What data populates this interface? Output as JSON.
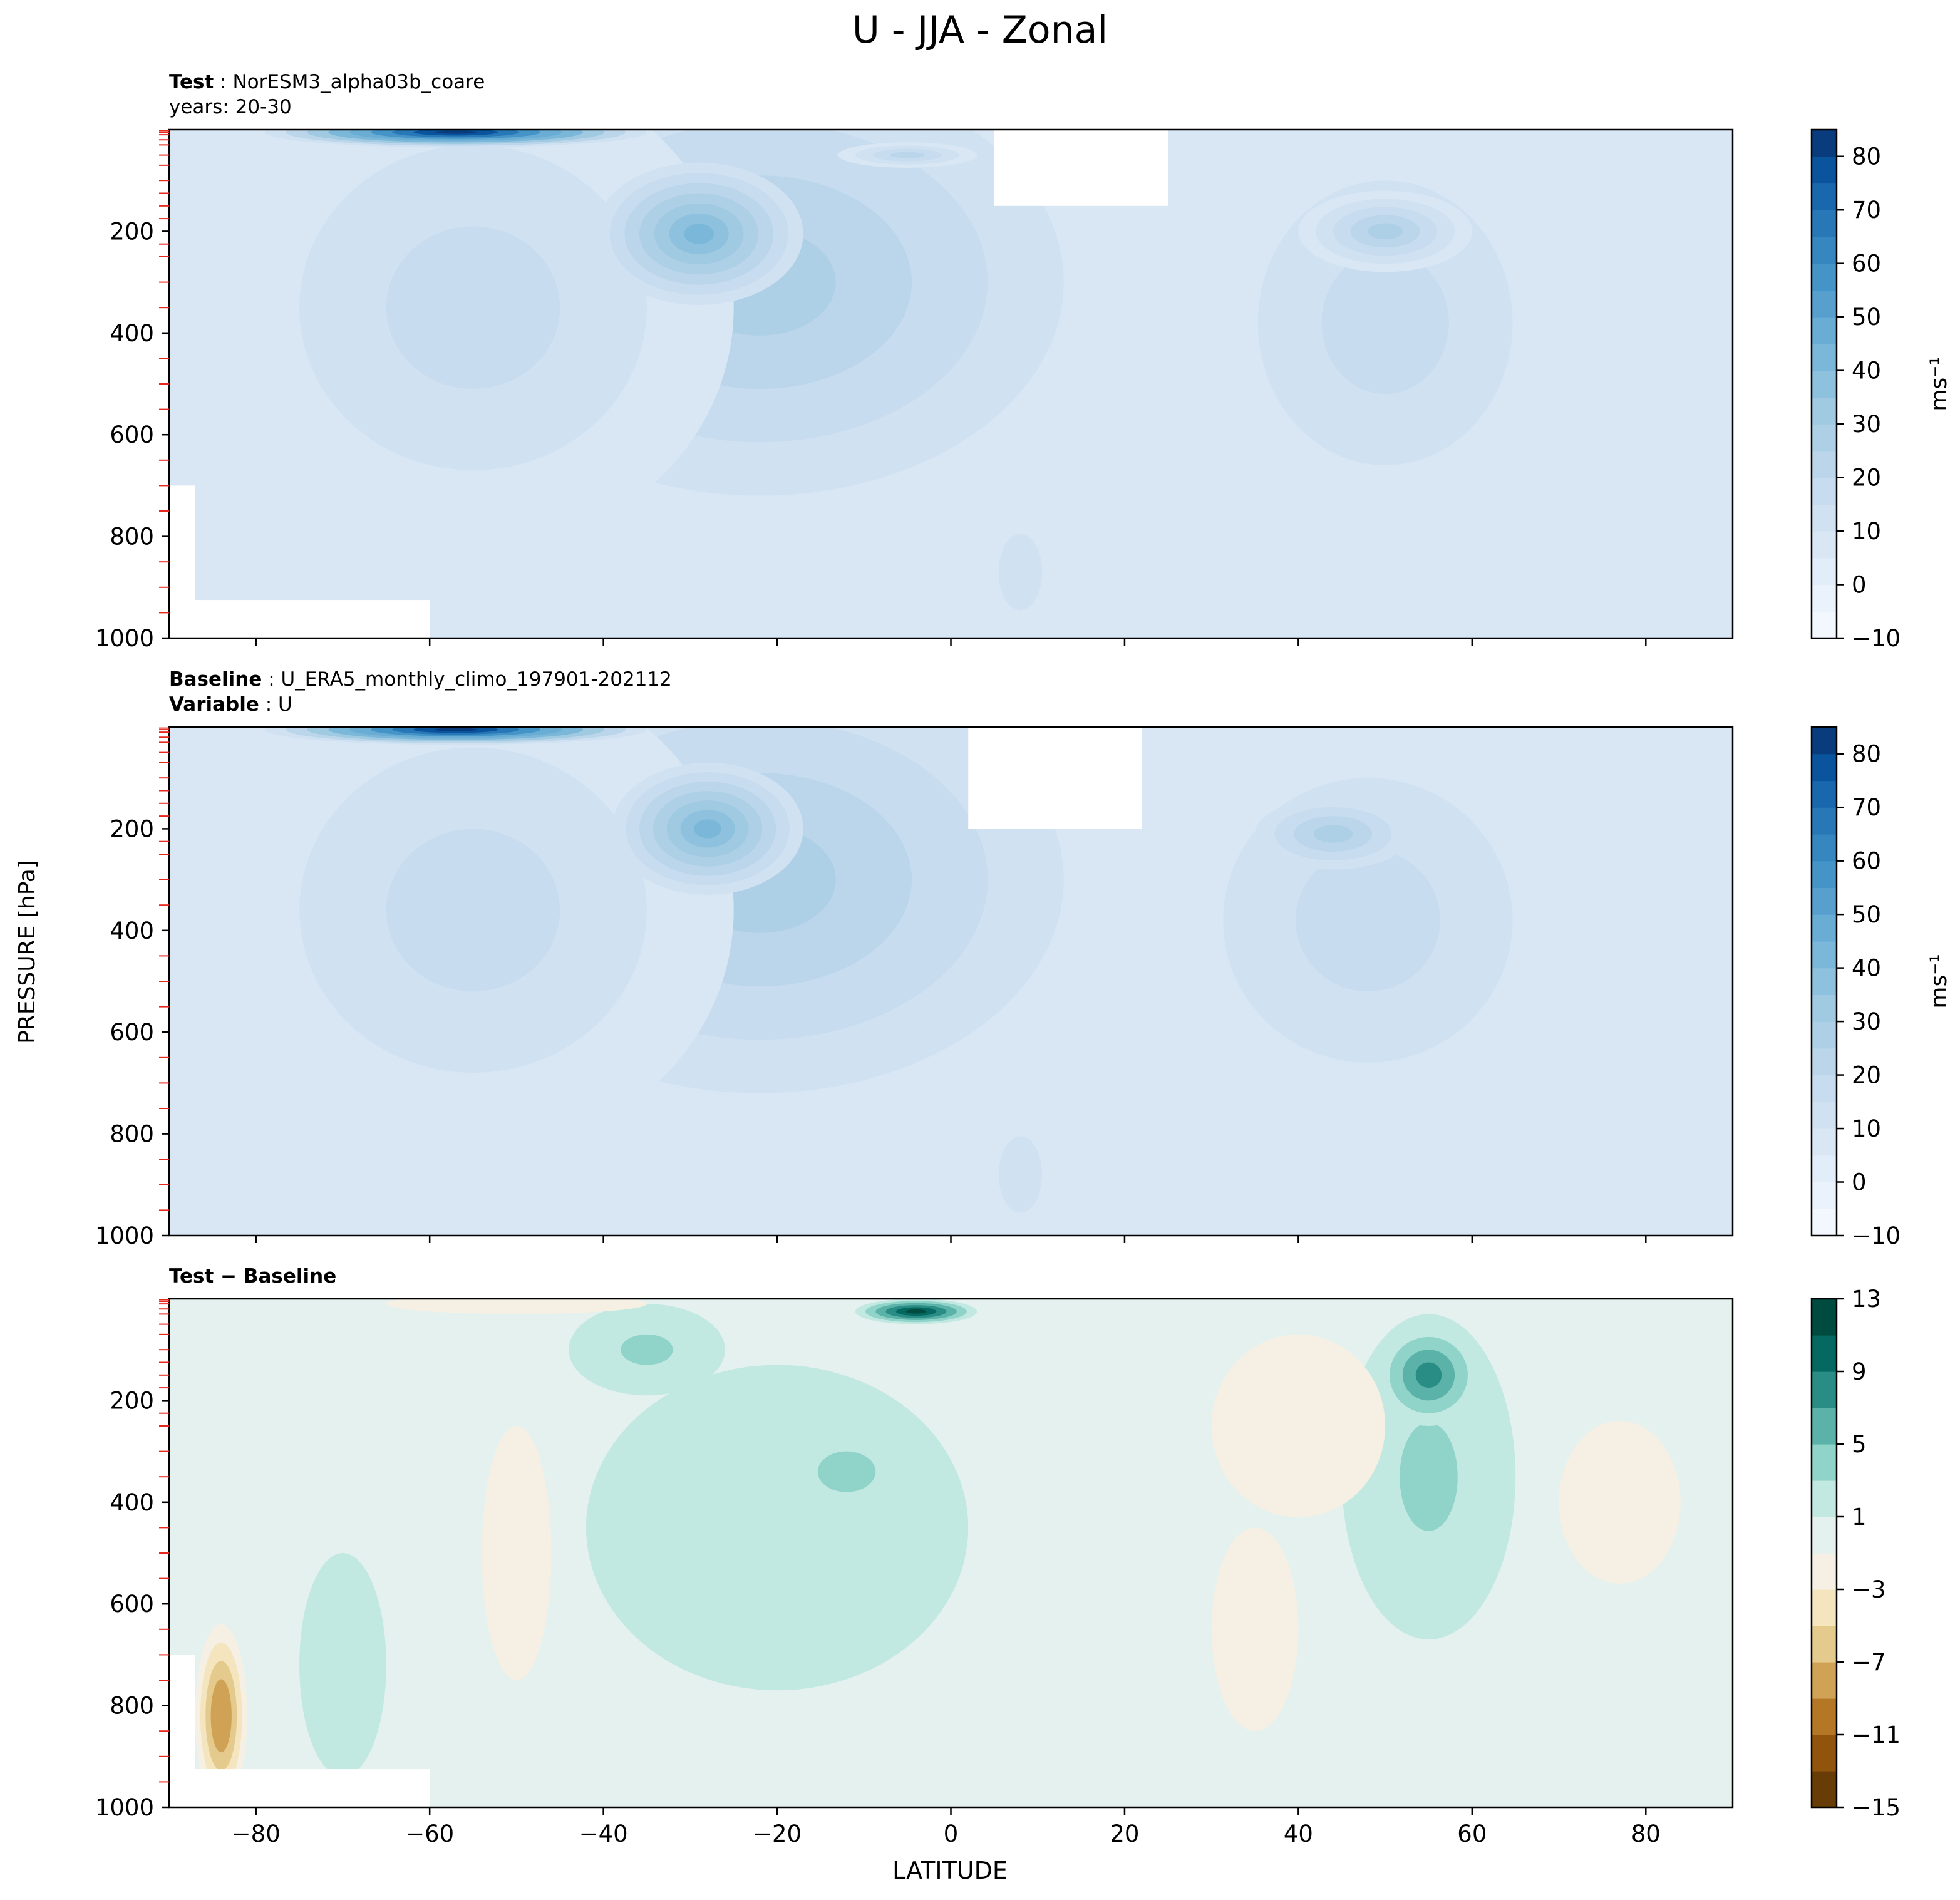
{
  "figure": {
    "title": "U - JJA - Zonal",
    "shared_ylabel": "PRESSURE [hPa]",
    "xlabel": "LATITUDE"
  },
  "panels": [
    {
      "id": "test",
      "header": [
        {
          "bold": "Test",
          "text": "NorESM3_alpha03b_coare"
        },
        {
          "bold": "",
          "text": "years: 20-30"
        }
      ],
      "colorbar_label": "ms⁻¹"
    },
    {
      "id": "baseline",
      "header": [
        {
          "bold": "Baseline",
          "text": "U_ERA5_monthly_climo_197901-202112"
        },
        {
          "bold": "Variable",
          "text": "U"
        }
      ],
      "colorbar_label": "ms⁻¹"
    },
    {
      "id": "difference",
      "header": [
        {
          "bold": "Test − Baseline",
          "text": ""
        }
      ],
      "colorbar_label": ""
    }
  ],
  "chart_data": [
    {
      "type": "contourf",
      "panel": "Test",
      "xlim": [
        -90,
        90
      ],
      "ylim": [
        1000,
        0
      ],
      "xticks": [
        -80,
        -60,
        -40,
        -20,
        0,
        20,
        40,
        60,
        80
      ],
      "xtick_labels": [
        "−80",
        "−60",
        "−40",
        "−20",
        "0",
        "20",
        "40",
        "60",
        "80"
      ],
      "yticks": [
        200,
        400,
        600,
        800,
        1000
      ],
      "ytick_labels": [
        "200",
        "400",
        "600",
        "800",
        "1000"
      ],
      "colorbar": {
        "cmap": "Blues",
        "levels": [
          -10,
          -5,
          0,
          5,
          10,
          15,
          20,
          25,
          30,
          35,
          40,
          45,
          50,
          55,
          60,
          65,
          70,
          75,
          80,
          85
        ],
        "ticks": [
          -10,
          0,
          10,
          20,
          30,
          40,
          50,
          60,
          70,
          80
        ],
        "tick_labels": [
          "−10",
          "0",
          "10",
          "20",
          "30",
          "40",
          "50",
          "60",
          "70",
          "80"
        ]
      },
      "background_level": 5,
      "features": [
        {
          "lat": -57,
          "p": 5,
          "value": 85,
          "rx": 22,
          "ry": 30
        },
        {
          "lat": -29,
          "p": 205,
          "value": 42,
          "rx": 12,
          "ry": 140
        },
        {
          "lat": -22,
          "p": 300,
          "value": 25,
          "rx": 35,
          "ry": 420
        },
        {
          "lat": -55,
          "p": 350,
          "value": 17,
          "rx": 30,
          "ry": 480
        },
        {
          "lat": -5,
          "p": 50,
          "value": 22,
          "rx": 8,
          "ry": 25
        },
        {
          "lat": 50,
          "p": 200,
          "value": 27,
          "rx": 10,
          "ry": 80
        },
        {
          "lat": 50,
          "p": 380,
          "value": 15,
          "rx": 22,
          "ry": 420
        },
        {
          "lat": 8,
          "p": 870,
          "value": 10,
          "rx": 5,
          "ry": 150
        }
      ],
      "masked_regions": [
        {
          "lat": [
            -90,
            -60
          ],
          "p": [
            925,
            1000
          ]
        },
        {
          "lat": [
            -90,
            -87
          ],
          "p": [
            700,
            1000
          ]
        },
        {
          "lat": [
            5,
            25
          ],
          "p": [
            0,
            150
          ]
        }
      ]
    },
    {
      "type": "contourf",
      "panel": "Baseline",
      "xlim": [
        -90,
        90
      ],
      "ylim": [
        1000,
        0
      ],
      "xticks": [
        -80,
        -60,
        -40,
        -20,
        0,
        20,
        40,
        60,
        80
      ],
      "xtick_labels": [
        "−80",
        "−60",
        "−40",
        "−20",
        "0",
        "20",
        "40",
        "60",
        "80"
      ],
      "yticks": [
        200,
        400,
        600,
        800,
        1000
      ],
      "ytick_labels": [
        "200",
        "400",
        "600",
        "800",
        "1000"
      ],
      "colorbar": {
        "cmap": "Blues",
        "levels": [
          -10,
          -5,
          0,
          5,
          10,
          15,
          20,
          25,
          30,
          35,
          40,
          45,
          50,
          55,
          60,
          65,
          70,
          75,
          80,
          85
        ],
        "ticks": [
          -10,
          0,
          10,
          20,
          30,
          40,
          50,
          60,
          70,
          80
        ],
        "tick_labels": [
          "−10",
          "0",
          "10",
          "20",
          "30",
          "40",
          "50",
          "60",
          "70",
          "80"
        ]
      },
      "background_level": 5,
      "features": [
        {
          "lat": -57,
          "p": 5,
          "value": 85,
          "rx": 22,
          "ry": 30
        },
        {
          "lat": -28,
          "p": 200,
          "value": 40,
          "rx": 11,
          "ry": 130
        },
        {
          "lat": -22,
          "p": 300,
          "value": 25,
          "rx": 35,
          "ry": 420
        },
        {
          "lat": -55,
          "p": 360,
          "value": 17,
          "rx": 30,
          "ry": 480
        },
        {
          "lat": 44,
          "p": 210,
          "value": 25,
          "rx": 9,
          "ry": 70
        },
        {
          "lat": 48,
          "p": 380,
          "value": 15,
          "rx": 25,
          "ry": 420
        },
        {
          "lat": 8,
          "p": 880,
          "value": 10,
          "rx": 5,
          "ry": 150
        }
      ],
      "masked_regions": [
        {
          "lat": [
            2,
            22
          ],
          "p": [
            0,
            200
          ]
        }
      ]
    },
    {
      "type": "contourf",
      "panel": "Test − Baseline",
      "xlim": [
        -90,
        90
      ],
      "ylim": [
        1000,
        0
      ],
      "xticks": [
        -80,
        -60,
        -40,
        -20,
        0,
        20,
        40,
        60,
        80
      ],
      "xtick_labels": [
        "−80",
        "−60",
        "−40",
        "−20",
        "0",
        "20",
        "40",
        "60",
        "80"
      ],
      "yticks": [
        200,
        400,
        600,
        800,
        1000
      ],
      "ytick_labels": [
        "200",
        "400",
        "600",
        "800",
        "1000"
      ],
      "colorbar": {
        "cmap": "BrBG",
        "levels": [
          -15,
          -13,
          -11,
          -9,
          -7,
          -5,
          -3,
          -1,
          1,
          3,
          5,
          7,
          9,
          11,
          13
        ],
        "ticks": [
          -15,
          -11,
          -7,
          -3,
          1,
          5,
          9,
          13
        ],
        "tick_labels": [
          "−15",
          "−11",
          "−7",
          "−3",
          "1",
          "5",
          "9",
          "13"
        ]
      },
      "background_level": 0,
      "features": [
        {
          "lat": -4,
          "p": 25,
          "value": 13,
          "rx": 7,
          "ry": 25
        },
        {
          "lat": 55,
          "p": 150,
          "value": 7,
          "rx": 6,
          "ry": 100
        },
        {
          "lat": 55,
          "p": 350,
          "value": 4,
          "rx": 10,
          "ry": 320
        },
        {
          "lat": -12,
          "p": 340,
          "value": 4,
          "rx": 10,
          "ry": 120
        },
        {
          "lat": -35,
          "p": 100,
          "value": 4,
          "rx": 9,
          "ry": 90
        },
        {
          "lat": -20,
          "p": 450,
          "value": 2,
          "rx": 22,
          "ry": 320
        },
        {
          "lat": 40,
          "p": 250,
          "value": -3,
          "rx": 10,
          "ry": 180
        },
        {
          "lat": 77,
          "p": 400,
          "value": -3,
          "rx": 7,
          "ry": 160
        },
        {
          "lat": -50,
          "p": 500,
          "value": -2,
          "rx": 8,
          "ry": 500
        },
        {
          "lat": 35,
          "p": 650,
          "value": -2,
          "rx": 10,
          "ry": 400
        },
        {
          "lat": -84,
          "p": 820,
          "value": -9,
          "rx": 3,
          "ry": 180
        },
        {
          "lat": -70,
          "p": 720,
          "value": 2,
          "rx": 5,
          "ry": 220
        },
        {
          "lat": -50,
          "p": 10,
          "value": -3,
          "rx": 15,
          "ry": 20
        }
      ],
      "masked_regions": [
        {
          "lat": [
            -90,
            -60
          ],
          "p": [
            925,
            1000
          ]
        },
        {
          "lat": [
            -90,
            -87
          ],
          "p": [
            700,
            1000
          ]
        }
      ]
    }
  ]
}
